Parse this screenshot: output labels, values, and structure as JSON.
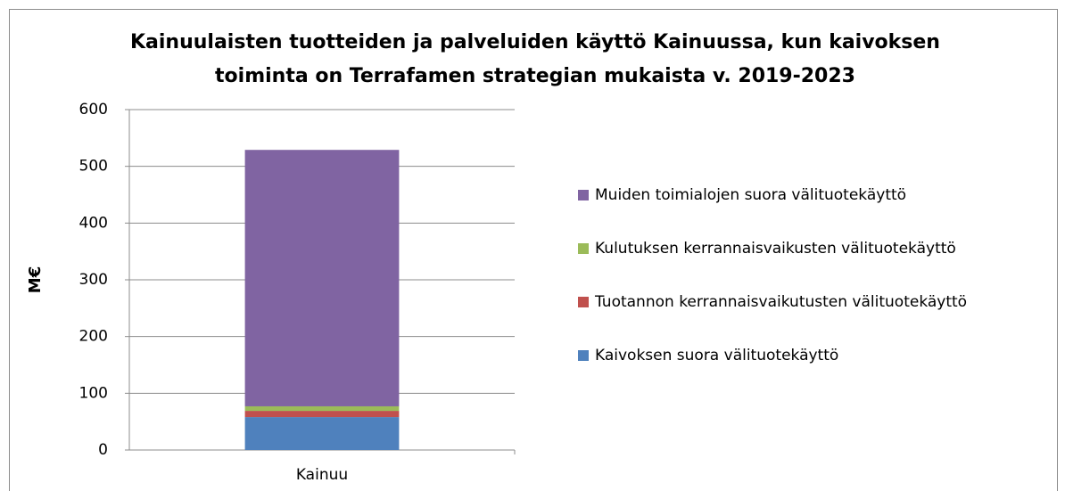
{
  "chart_data": {
    "type": "stacked_bar",
    "title": [
      "Kainuulaisten tuotteiden ja palveluiden käyttö Kainuussa, kun kaivoksen",
      "toiminta on Terrafamen strategian mukaista  v. 2019-2023"
    ],
    "y_label": "M€",
    "categories": [
      "Kainuu"
    ],
    "series": [
      {
        "name": "Kaivoksen suora välituotekäyttö",
        "color": "#4f81bd",
        "values": [
          58
        ]
      },
      {
        "name": "Tuotannon kerrannaisvaikutusten välituotekäyttö",
        "color": "#c0504d",
        "values": [
          11
        ]
      },
      {
        "name": "Kulutuksen kerrannaisvaikusten välituotekäyttö",
        "color": "#9bbb59",
        "values": [
          8
        ]
      },
      {
        "name": "Muiden toimialojen suora välituotekäyttö",
        "color": "#8064a2",
        "values": [
          452
        ]
      }
    ],
    "ylim": [
      0,
      600
    ],
    "yticks": [
      0,
      100,
      200,
      300,
      400,
      500,
      600
    ],
    "grid": true,
    "legend": "right"
  }
}
